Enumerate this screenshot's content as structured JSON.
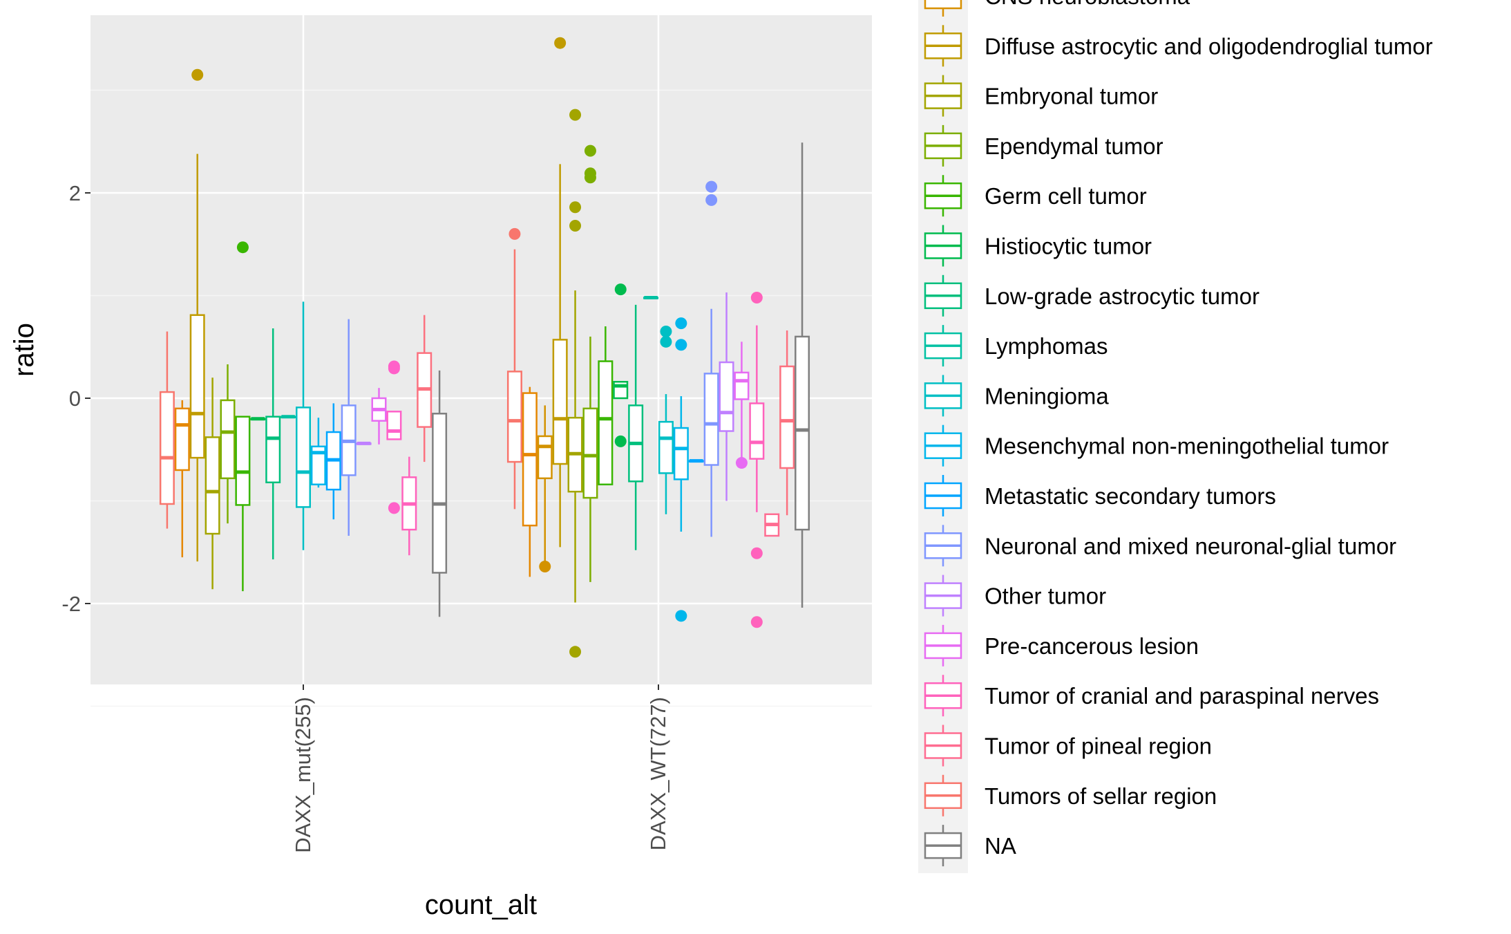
{
  "chart_data": {
    "type": "box",
    "xlabel": "count_alt",
    "ylabel": "ratio",
    "categories": [
      "DAXX_mut(255)",
      "DAXX_WT(727)"
    ],
    "ylim": [
      -2.8,
      3.7
    ],
    "yticks": [
      -2,
      0,
      2
    ],
    "ytick_labels": [
      "-2",
      "0",
      "2"
    ],
    "grid": true,
    "legend_position": "right",
    "legend": [
      {
        "label": "CNS neuroblastoma",
        "color": "#D89000"
      },
      {
        "label": "Diffuse astrocytic and oligodendroglial tumor",
        "color": "#C09B00"
      },
      {
        "label": "Embryonal tumor",
        "color": "#A3A500"
      },
      {
        "label": "Ependymal tumor",
        "color": "#7CAE00"
      },
      {
        "label": "Germ cell tumor",
        "color": "#39B600"
      },
      {
        "label": "Histiocytic tumor",
        "color": "#00BB4E"
      },
      {
        "label": "Low-grade astrocytic tumor",
        "color": "#00BF7D"
      },
      {
        "label": "Lymphomas",
        "color": "#00C1A3"
      },
      {
        "label": "Meningioma",
        "color": "#00BFC4"
      },
      {
        "label": "Mesenchymal non-meningothelial tumor",
        "color": "#00B6EB"
      },
      {
        "label": "Metastatic secondary tumors",
        "color": "#00A5FF"
      },
      {
        "label": "Neuronal and mixed neuronal-glial tumor",
        "color": "#7F96FF"
      },
      {
        "label": "Other tumor",
        "color": "#BF80FF"
      },
      {
        "label": "Pre-cancerous lesion",
        "color": "#E76BF3"
      },
      {
        "label": "Tumor of cranial and paraspinal nerves",
        "color": "#FF62BC"
      },
      {
        "label": "Tumor of pineal region",
        "color": "#FF6C91"
      },
      {
        "label": "Tumors of sellar region",
        "color": "#F8766D"
      },
      {
        "label": "NA",
        "color": "#7F7F7F"
      }
    ],
    "series": [
      {
        "group": "DAXX_mut(255)",
        "color": "#F8766D",
        "stats": {
          "lower": -1.27,
          "q1": -1.03,
          "median": -0.58,
          "q3": 0.06,
          "upper": 0.65
        },
        "outliers": []
      },
      {
        "group": "DAXX_mut(255)",
        "color": "#E58700",
        "stats": {
          "lower": -1.55,
          "q1": -0.7,
          "median": -0.26,
          "q3": -0.1,
          "upper": -0.02
        },
        "outliers": []
      },
      {
        "group": "DAXX_mut(255)",
        "color": "#C09B00",
        "stats": {
          "lower": -1.59,
          "q1": -0.58,
          "median": -0.15,
          "q3": 0.81,
          "upper": 2.38
        },
        "outliers": [
          3.15
        ]
      },
      {
        "group": "DAXX_mut(255)",
        "color": "#A3A500",
        "stats": {
          "lower": -1.86,
          "q1": -1.32,
          "median": -0.91,
          "q3": -0.38,
          "upper": 0.2
        },
        "outliers": []
      },
      {
        "group": "DAXX_mut(255)",
        "color": "#7CAE00",
        "stats": {
          "lower": -1.22,
          "q1": -0.78,
          "median": -0.33,
          "q3": -0.02,
          "upper": 0.33
        },
        "outliers": []
      },
      {
        "group": "DAXX_mut(255)",
        "color": "#39B600",
        "stats": {
          "lower": -1.88,
          "q1": -1.04,
          "median": -0.72,
          "q3": -0.18,
          "upper": -0.18
        },
        "outliers": [
          1.47
        ]
      },
      {
        "group": "DAXX_mut(255)",
        "color": "#00BB4E",
        "stats": {
          "lower": -0.2,
          "q1": -0.2,
          "median": -0.2,
          "q3": -0.2,
          "upper": -0.2
        },
        "outliers": []
      },
      {
        "group": "DAXX_mut(255)",
        "color": "#00BF7D",
        "stats": {
          "lower": -1.57,
          "q1": -0.82,
          "median": -0.39,
          "q3": -0.18,
          "upper": 0.68
        },
        "outliers": []
      },
      {
        "group": "DAXX_mut(255)",
        "color": "#00C1A3",
        "stats": {
          "lower": -0.18,
          "q1": -0.18,
          "median": -0.18,
          "q3": -0.18,
          "upper": -0.18
        },
        "outliers": []
      },
      {
        "group": "DAXX_mut(255)",
        "color": "#00BFC4",
        "stats": {
          "lower": -1.48,
          "q1": -1.06,
          "median": -0.72,
          "q3": -0.09,
          "upper": 0.94
        },
        "outliers": []
      },
      {
        "group": "DAXX_mut(255)",
        "color": "#00B6EB",
        "stats": {
          "lower": -0.87,
          "q1": -0.84,
          "median": -0.53,
          "q3": -0.47,
          "upper": -0.19
        },
        "outliers": []
      },
      {
        "group": "DAXX_mut(255)",
        "color": "#00A5FF",
        "stats": {
          "lower": -1.18,
          "q1": -0.89,
          "median": -0.6,
          "q3": -0.33,
          "upper": -0.05
        },
        "outliers": []
      },
      {
        "group": "DAXX_mut(255)",
        "color": "#7F96FF",
        "stats": {
          "lower": -1.34,
          "q1": -0.75,
          "median": -0.42,
          "q3": -0.07,
          "upper": 0.77
        },
        "outliers": []
      },
      {
        "group": "DAXX_mut(255)",
        "color": "#BF80FF",
        "stats": {
          "lower": -0.44,
          "q1": -0.44,
          "median": -0.44,
          "q3": -0.44,
          "upper": -0.44
        },
        "outliers": []
      },
      {
        "group": "DAXX_mut(255)",
        "color": "#E76BF3",
        "stats": {
          "lower": -0.45,
          "q1": -0.22,
          "median": -0.11,
          "q3": 0.0,
          "upper": 0.1
        },
        "outliers": []
      },
      {
        "group": "DAXX_mut(255)",
        "color": "#FF61C9",
        "stats": {
          "lower": -0.4,
          "q1": -0.4,
          "median": -0.32,
          "q3": -0.13,
          "upper": -0.13
        },
        "outliers": [
          0.31,
          0.29,
          -1.07
        ]
      },
      {
        "group": "DAXX_mut(255)",
        "color": "#FF62BC",
        "stats": {
          "lower": -1.53,
          "q1": -1.28,
          "median": -1.03,
          "q3": -0.77,
          "upper": -0.57
        },
        "outliers": []
      },
      {
        "group": "DAXX_mut(255)",
        "color": "#FC717F",
        "stats": {
          "lower": -0.62,
          "q1": -0.28,
          "median": 0.09,
          "q3": 0.44,
          "upper": 0.81
        },
        "outliers": []
      },
      {
        "group": "DAXX_mut(255)",
        "color": "#7F7F7F",
        "stats": {
          "lower": -2.13,
          "q1": -1.7,
          "median": -1.03,
          "q3": -0.15,
          "upper": 0.27
        },
        "outliers": []
      },
      {
        "group": "DAXX_WT(727)",
        "color": "#F8766D",
        "stats": {
          "lower": -1.08,
          "q1": -0.62,
          "median": -0.22,
          "q3": 0.26,
          "upper": 1.45
        },
        "outliers": [
          1.6
        ]
      },
      {
        "group": "DAXX_WT(727)",
        "color": "#E58700",
        "stats": {
          "lower": -1.74,
          "q1": -1.24,
          "median": -0.55,
          "q3": 0.05,
          "upper": 0.11
        },
        "outliers": []
      },
      {
        "group": "DAXX_WT(727)",
        "color": "#D39200",
        "stats": {
          "lower": -1.62,
          "q1": -0.78,
          "median": -0.47,
          "q3": -0.37,
          "upper": -0.07
        },
        "outliers": [
          -1.64
        ]
      },
      {
        "group": "DAXX_WT(727)",
        "color": "#C09B00",
        "stats": {
          "lower": -1.45,
          "q1": -0.64,
          "median": -0.2,
          "q3": 0.57,
          "upper": 2.28
        },
        "outliers": [
          3.46
        ]
      },
      {
        "group": "DAXX_WT(727)",
        "color": "#A3A500",
        "stats": {
          "lower": -1.99,
          "q1": -0.91,
          "median": -0.54,
          "q3": -0.19,
          "upper": 1.05
        },
        "outliers": [
          2.76,
          1.86,
          1.68,
          -2.47
        ]
      },
      {
        "group": "DAXX_WT(727)",
        "color": "#7CAE00",
        "stats": {
          "lower": -1.79,
          "q1": -0.97,
          "median": -0.56,
          "q3": -0.1,
          "upper": 0.6
        },
        "outliers": [
          2.41,
          2.19,
          2.15
        ]
      },
      {
        "group": "DAXX_WT(727)",
        "color": "#39B600",
        "stats": {
          "lower": -0.64,
          "q1": -0.84,
          "median": -0.2,
          "q3": 0.36,
          "upper": 0.7
        },
        "outliers": []
      },
      {
        "group": "DAXX_WT(727)",
        "color": "#00BB4E",
        "stats": {
          "lower": 0.02,
          "q1": 0.0,
          "median": 0.12,
          "q3": 0.16,
          "upper": 0.16
        },
        "outliers": [
          -0.42,
          1.06
        ]
      },
      {
        "group": "DAXX_WT(727)",
        "color": "#00BF7D",
        "stats": {
          "lower": -1.48,
          "q1": -0.81,
          "median": -0.44,
          "q3": -0.07,
          "upper": 0.91
        },
        "outliers": []
      },
      {
        "group": "DAXX_WT(727)",
        "color": "#00C1A3",
        "stats": {
          "lower": 0.98,
          "q1": 0.98,
          "median": 0.98,
          "q3": 0.98,
          "upper": 0.98
        },
        "outliers": []
      },
      {
        "group": "DAXX_WT(727)",
        "color": "#00BFC4",
        "stats": {
          "lower": -1.13,
          "q1": -0.73,
          "median": -0.39,
          "q3": -0.23,
          "upper": 0.04
        },
        "outliers": [
          0.65,
          0.55
        ]
      },
      {
        "group": "DAXX_WT(727)",
        "color": "#00B6EB",
        "stats": {
          "lower": -1.3,
          "q1": -0.79,
          "median": -0.49,
          "q3": -0.29,
          "upper": 0.02
        },
        "outliers": [
          0.73,
          0.52,
          -2.12
        ]
      },
      {
        "group": "DAXX_WT(727)",
        "color": "#00A5FF",
        "stats": {
          "lower": -0.61,
          "q1": -0.61,
          "median": -0.61,
          "q3": -0.61,
          "upper": -0.61
        },
        "outliers": []
      },
      {
        "group": "DAXX_WT(727)",
        "color": "#7F96FF",
        "stats": {
          "lower": -1.35,
          "q1": -0.65,
          "median": -0.25,
          "q3": 0.24,
          "upper": 0.87
        },
        "outliers": [
          2.06,
          1.93
        ]
      },
      {
        "group": "DAXX_WT(727)",
        "color": "#BF80FF",
        "stats": {
          "lower": -1.0,
          "q1": -0.32,
          "median": -0.14,
          "q3": 0.35,
          "upper": 1.03
        },
        "outliers": []
      },
      {
        "group": "DAXX_WT(727)",
        "color": "#E76BF3",
        "stats": {
          "lower": -0.68,
          "q1": -0.01,
          "median": 0.17,
          "q3": 0.25,
          "upper": 0.55
        },
        "outliers": [
          -0.63
        ]
      },
      {
        "group": "DAXX_WT(727)",
        "color": "#FF62BC",
        "stats": {
          "lower": -1.11,
          "q1": -0.59,
          "median": -0.43,
          "q3": -0.05,
          "upper": 0.71
        },
        "outliers": [
          0.98,
          -1.51,
          -2.18
        ]
      },
      {
        "group": "DAXX_WT(727)",
        "color": "#FF6C91",
        "stats": {
          "lower": -1.34,
          "q1": -1.34,
          "median": -1.23,
          "q3": -1.13,
          "upper": -1.13
        },
        "outliers": []
      },
      {
        "group": "DAXX_WT(727)",
        "color": "#FC717F",
        "stats": {
          "lower": -1.14,
          "q1": -0.68,
          "median": -0.22,
          "q3": 0.31,
          "upper": 0.66
        },
        "outliers": []
      },
      {
        "group": "DAXX_WT(727)",
        "color": "#7F7F7F",
        "stats": {
          "lower": -2.04,
          "q1": -1.28,
          "median": -0.31,
          "q3": 0.6,
          "upper": 2.49
        },
        "outliers": []
      }
    ]
  }
}
